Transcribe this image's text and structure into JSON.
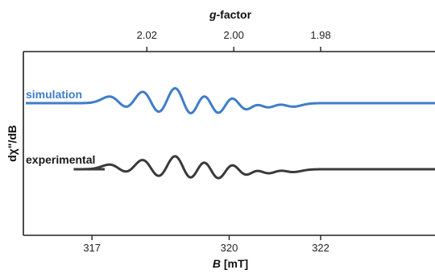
{
  "chart_data": {
    "type": "line",
    "top_axis": {
      "title_italic": "g",
      "title_rest": "-factor",
      "ticks": [
        {
          "label": "2.02",
          "value": 2.02,
          "B": 318.2
        },
        {
          "label": "2.00",
          "value": 2.0,
          "B": 320.1
        },
        {
          "label": "1.98",
          "value": 1.98,
          "B": 322.0
        }
      ]
    },
    "bottom_axis": {
      "title_italic": "B",
      "title_rest": " [mT]",
      "ticks": [
        {
          "label": "317",
          "value": 317.0
        },
        {
          "label": "320",
          "value": 320.0
        },
        {
          "label": "322",
          "value": 322.0
        }
      ]
    },
    "ylabel": "dχ\"/dB",
    "xlim": [
      315.5,
      324.5
    ],
    "grid": false,
    "series": [
      {
        "name": "simulation",
        "color": "#3f7dc9",
        "baseline": 1.0,
        "peaks": [
          {
            "B": 317.6,
            "amp": 0.1
          },
          {
            "B": 318.3,
            "amp": 0.2
          },
          {
            "B": 319.0,
            "amp": 0.28
          },
          {
            "B": 319.6,
            "amp": 0.24
          },
          {
            "B": 320.2,
            "amp": 0.18
          },
          {
            "B": 320.7,
            "amp": 0.1
          },
          {
            "B": 321.2,
            "amp": 0.05
          }
        ]
      },
      {
        "name": "experimental",
        "color": "#3a3a3a",
        "baseline": 0.0,
        "peaks": [
          {
            "B": 317.6,
            "amp": 0.07
          },
          {
            "B": 318.3,
            "amp": 0.16
          },
          {
            "B": 319.0,
            "amp": 0.24
          },
          {
            "B": 319.6,
            "amp": 0.22
          },
          {
            "B": 320.2,
            "amp": 0.16
          },
          {
            "B": 320.7,
            "amp": 0.09
          },
          {
            "B": 321.2,
            "amp": 0.04
          }
        ]
      }
    ]
  }
}
